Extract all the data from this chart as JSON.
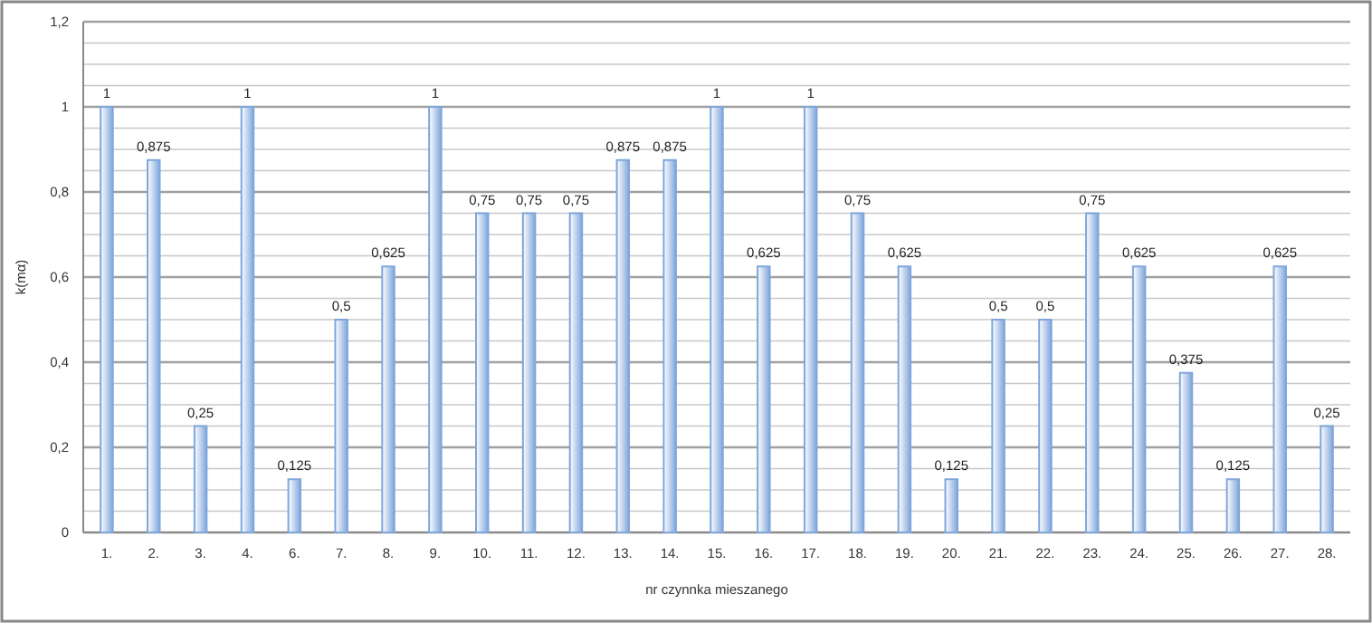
{
  "chart_data": {
    "type": "bar",
    "xlabel": "nr czynnka mieszanego",
    "ylabel": "k(mα)",
    "categories": [
      "1.",
      "2.",
      "3.",
      "4.",
      "6.",
      "7.",
      "8.",
      "9.",
      "10.",
      "11.",
      "12.",
      "13.",
      "14.",
      "15.",
      "16.",
      "17.",
      "18.",
      "19.",
      "20.",
      "21.",
      "22.",
      "23.",
      "24.",
      "25.",
      "26.",
      "27.",
      "28."
    ],
    "values": [
      1,
      0.875,
      0.25,
      1,
      0.125,
      0.5,
      0.625,
      1,
      0.75,
      0.75,
      0.75,
      0.875,
      0.875,
      1,
      0.625,
      1,
      0.75,
      0.625,
      0.125,
      0.5,
      0.5,
      0.75,
      0.625,
      0.375,
      0.125,
      0.625,
      0.25
    ],
    "value_labels": [
      "1",
      "0,875",
      "0,25",
      "1",
      "0,125",
      "0,5",
      "0,625",
      "1",
      "0,75",
      "0,75",
      "0,75",
      "0,875",
      "0,875",
      "1",
      "0,625",
      "1",
      "0,75",
      "0,625",
      "0,125",
      "0,5",
      "0,5",
      "0,75",
      "0,625",
      "0,375",
      "0,125",
      "0,625",
      "0,25"
    ],
    "color": "#7fa6dc",
    "ylim": [
      0,
      1.2
    ],
    "yticks": [
      {
        "value": 0,
        "label": "0"
      },
      {
        "value": 0.05,
        "label": null
      },
      {
        "value": 0.1,
        "label": null
      },
      {
        "value": 0.15,
        "label": null
      },
      {
        "value": 0.2,
        "label": "0,2"
      },
      {
        "value": 0.25,
        "label": null
      },
      {
        "value": 0.3,
        "label": null
      },
      {
        "value": 0.35,
        "label": null
      },
      {
        "value": 0.4,
        "label": "0,4"
      },
      {
        "value": 0.45,
        "label": null
      },
      {
        "value": 0.5,
        "label": null
      },
      {
        "value": 0.55,
        "label": null
      },
      {
        "value": 0.6,
        "label": "0,6"
      },
      {
        "value": 0.65,
        "label": null
      },
      {
        "value": 0.7,
        "label": null
      },
      {
        "value": 0.75,
        "label": null
      },
      {
        "value": 0.8,
        "label": "0,8"
      },
      {
        "value": 0.85,
        "label": null
      },
      {
        "value": 0.9,
        "label": null
      },
      {
        "value": 0.95,
        "label": null
      },
      {
        "value": 1,
        "label": "1"
      },
      {
        "value": 1.05,
        "label": null
      },
      {
        "value": 1.1,
        "label": null
      },
      {
        "value": 1.15,
        "label": null
      },
      {
        "value": 1.2,
        "label": "1,2"
      }
    ],
    "grid": true
  }
}
